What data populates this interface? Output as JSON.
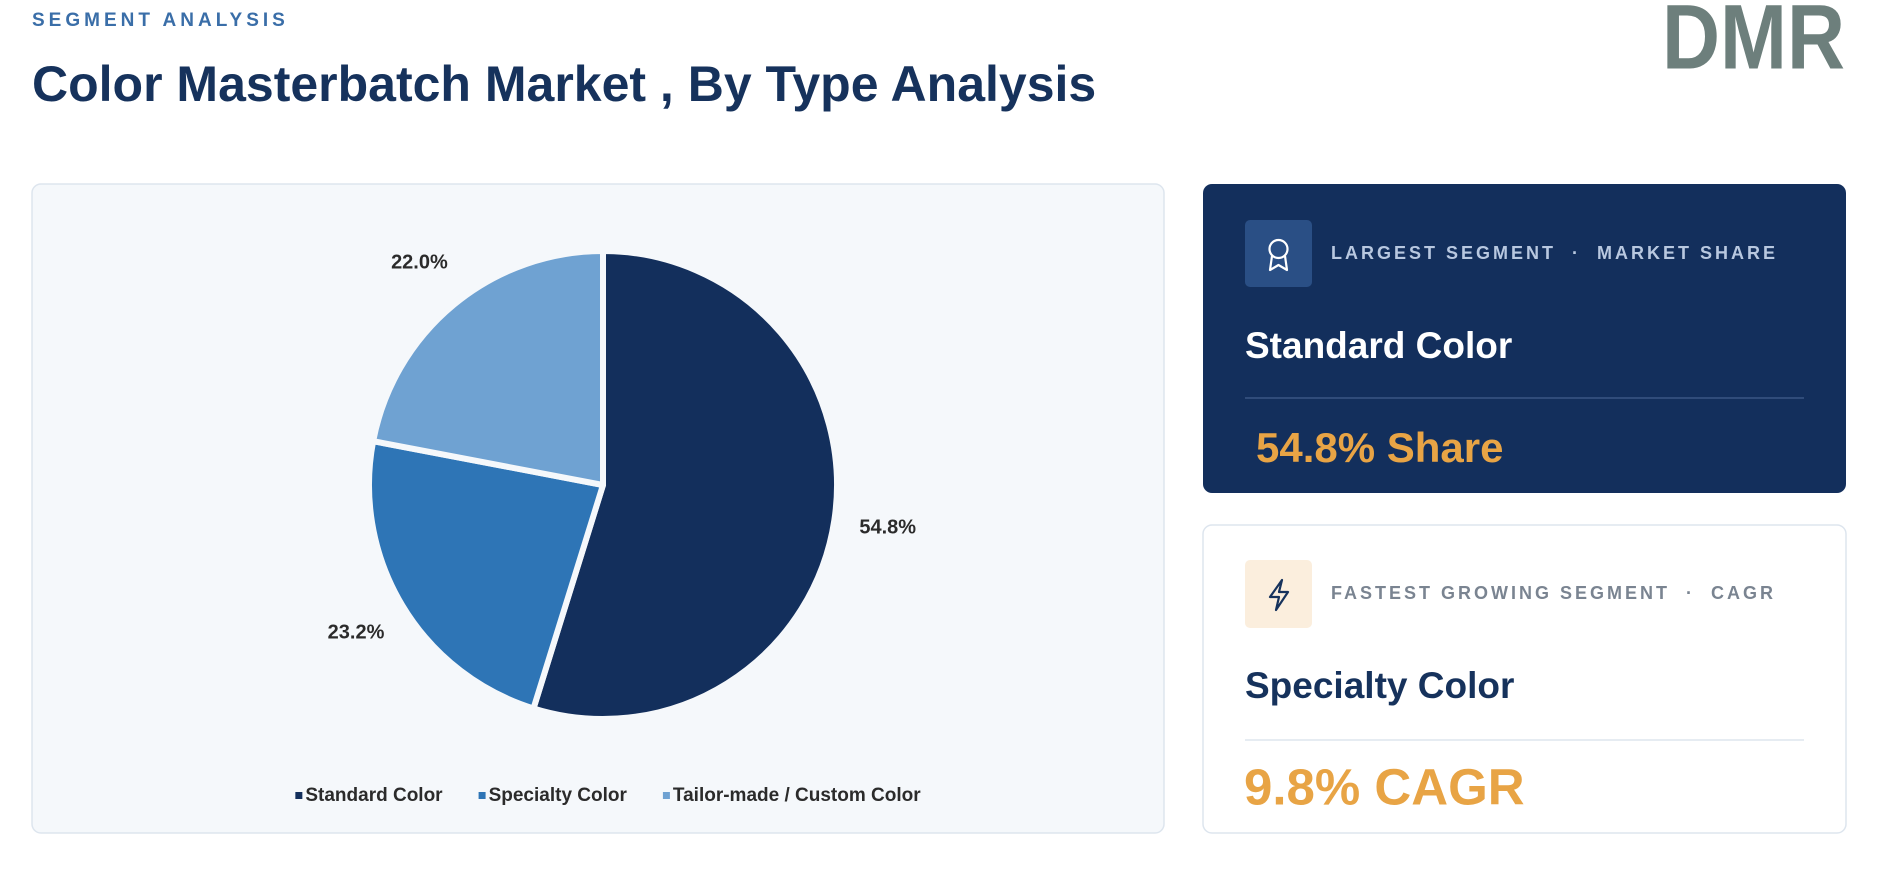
{
  "header": {
    "eyebrow": "SEGMENT ANALYSIS",
    "title": "Color Masterbatch Market , By Type Analysis",
    "logo": "DMR"
  },
  "chart_data": {
    "type": "pie",
    "categories": [
      "Standard Color",
      "Specialty Color",
      "Tailor-made / Custom Color"
    ],
    "values": [
      54.8,
      23.2,
      22.0
    ],
    "value_labels": [
      "54.8%",
      "23.2%",
      "22.0%"
    ],
    "colors": [
      "#132f5c",
      "#2e75b6",
      "#6fa2d2"
    ]
  },
  "cards": [
    {
      "label": "LARGEST SEGMENT  ·  MARKET SHARE",
      "name": "Standard Color",
      "value": "54.8% Share"
    },
    {
      "label": "FASTEST GROWING SEGMENT  ·  CAGR",
      "name": "Specialty Color",
      "value": "9.8% CAGR"
    }
  ]
}
